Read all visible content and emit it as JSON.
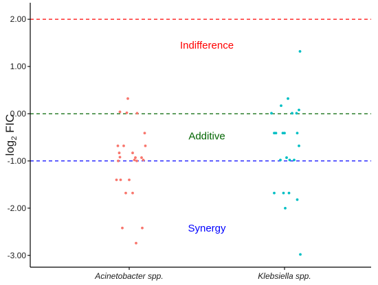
{
  "chart_data": {
    "type": "scatter",
    "title": "",
    "xlabel": "",
    "ylabel": "log",
    "ylabel_sub": "2",
    "ylabel_rest": " FIC",
    "categories": [
      "Acinetobacter spp.",
      "Klebsiella spp."
    ],
    "ylim": [
      -3.25,
      2.35
    ],
    "yticks": [
      2.0,
      1.0,
      0.0,
      -1.0,
      -2.0,
      -3.0
    ],
    "ytick_labels": [
      "2.00",
      "1.00",
      "0.00",
      "-1.00",
      "-2.00",
      "-3.00"
    ],
    "grid": false,
    "reference_lines": [
      {
        "y": 2.0,
        "color": "#ff0000",
        "style": "dashed"
      },
      {
        "y": 0.0,
        "color": "#006400",
        "style": "dashed"
      },
      {
        "y": -1.0,
        "color": "#0000ff",
        "style": "dashed"
      }
    ],
    "annotations": [
      {
        "text": "Indifference",
        "y": 1.45,
        "color": "#ff0000"
      },
      {
        "text": "Additive",
        "y": -0.47,
        "color": "#006400"
      },
      {
        "text": "Synergy",
        "y": -2.42,
        "color": "#0000ff"
      }
    ],
    "series": [
      {
        "category": "Acinetobacter spp.",
        "color": "#f8766d",
        "points": [
          {
            "jitter": -0.04,
            "y": 0.32
          },
          {
            "jitter": -0.27,
            "y": 0.04
          },
          {
            "jitter": -0.07,
            "y": 0.02
          },
          {
            "jitter": 0.23,
            "y": 0.01
          },
          {
            "jitter": 0.45,
            "y": -0.41
          },
          {
            "jitter": -0.33,
            "y": -0.68
          },
          {
            "jitter": -0.16,
            "y": -0.68
          },
          {
            "jitter": 0.47,
            "y": -0.68
          },
          {
            "jitter": -0.29,
            "y": -0.83
          },
          {
            "jitter": 0.1,
            "y": -0.83
          },
          {
            "jitter": -0.27,
            "y": -0.92
          },
          {
            "jitter": 0.18,
            "y": -0.93
          },
          {
            "jitter": 0.36,
            "y": -0.93
          },
          {
            "jitter": 0.15,
            "y": -0.98
          },
          {
            "jitter": 0.41,
            "y": -0.98
          },
          {
            "jitter": -0.32,
            "y": -1.0
          },
          {
            "jitter": 0.22,
            "y": -1.0
          },
          {
            "jitter": -0.37,
            "y": -1.4
          },
          {
            "jitter": -0.25,
            "y": -1.4
          },
          {
            "jitter": 0.0,
            "y": -1.4
          },
          {
            "jitter": -0.1,
            "y": -1.68
          },
          {
            "jitter": 0.1,
            "y": -1.68
          },
          {
            "jitter": -0.2,
            "y": -2.42
          },
          {
            "jitter": 0.38,
            "y": -2.42
          },
          {
            "jitter": 0.2,
            "y": -2.74
          }
        ]
      },
      {
        "category": "Klebsiella spp.",
        "color": "#00bfc4",
        "points": [
          {
            "jitter": 0.45,
            "y": 1.32
          },
          {
            "jitter": 0.1,
            "y": 0.32
          },
          {
            "jitter": -0.1,
            "y": 0.17
          },
          {
            "jitter": 0.42,
            "y": 0.08
          },
          {
            "jitter": -0.38,
            "y": 0.01
          },
          {
            "jitter": 0.22,
            "y": 0.01
          },
          {
            "jitter": 0.35,
            "y": 0.01
          },
          {
            "jitter": -0.3,
            "y": -0.41
          },
          {
            "jitter": -0.25,
            "y": -0.41
          },
          {
            "jitter": -0.05,
            "y": -0.41
          },
          {
            "jitter": 0.0,
            "y": -0.41
          },
          {
            "jitter": 0.37,
            "y": -0.41
          },
          {
            "jitter": 0.42,
            "y": -0.68
          },
          {
            "jitter": 0.06,
            "y": -0.93
          },
          {
            "jitter": -0.12,
            "y": -0.98
          },
          {
            "jitter": 0.15,
            "y": -0.98
          },
          {
            "jitter": 0.28,
            "y": -0.98
          },
          {
            "jitter": -0.3,
            "y": -1.68
          },
          {
            "jitter": -0.03,
            "y": -1.68
          },
          {
            "jitter": 0.13,
            "y": -1.68
          },
          {
            "jitter": 0.37,
            "y": -1.82
          },
          {
            "jitter": 0.02,
            "y": -2.0
          },
          {
            "jitter": 0.46,
            "y": -2.98
          }
        ]
      }
    ]
  }
}
